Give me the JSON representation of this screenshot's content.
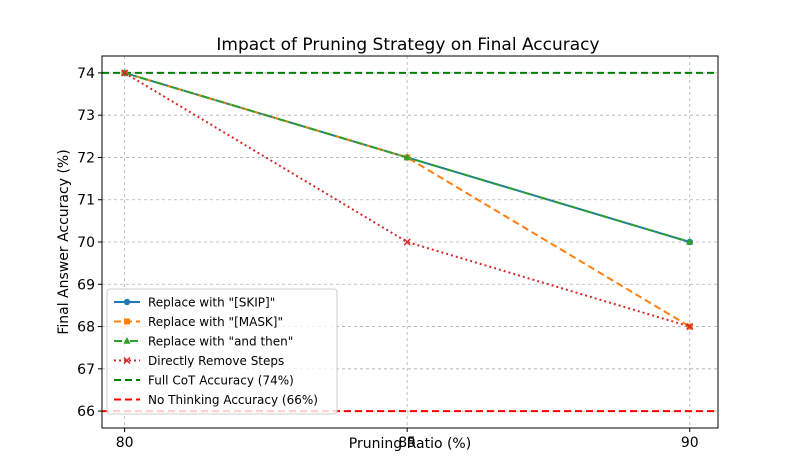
{
  "chart_data": {
    "type": "line",
    "title": "Impact of Pruning Strategy on Final Accuracy",
    "xlabel": "Pruning Ratio (%)",
    "ylabel": "Final Answer Accuracy (%)",
    "x": [
      80,
      85,
      90
    ],
    "xlim": [
      79.6,
      90.5
    ],
    "ylim": [
      65.6,
      74.4
    ],
    "xticks": [
      80,
      85,
      90
    ],
    "yticks": [
      66,
      67,
      68,
      69,
      70,
      71,
      72,
      73,
      74
    ],
    "grid": true,
    "legend_position": "lower-left",
    "series": [
      {
        "name": "Replace with \"[SKIP]\"",
        "values": [
          74,
          72,
          70
        ],
        "color": "#1f77b4",
        "linestyle": "solid",
        "marker": "circle"
      },
      {
        "name": "Replace with \"[MASK]\"",
        "values": [
          74,
          72,
          68
        ],
        "color": "#ff7f0e",
        "linestyle": "dashed",
        "marker": "square"
      },
      {
        "name": "Replace with \"and then\"",
        "values": [
          74,
          72,
          70
        ],
        "color": "#2ca02c",
        "linestyle": "dashdot",
        "marker": "triangle"
      },
      {
        "name": "Directly Remove Steps",
        "values": [
          74,
          70,
          68
        ],
        "color": "#d62728",
        "linestyle": "dotted",
        "marker": "x"
      }
    ],
    "reference_lines": [
      {
        "name": "Full CoT Accuracy (74%)",
        "value": 74,
        "color": "#008000",
        "linestyle": "dashed"
      },
      {
        "name": "No Thinking Accuracy (66%)",
        "value": 66,
        "color": "#ff0000",
        "linestyle": "dashed"
      }
    ]
  }
}
